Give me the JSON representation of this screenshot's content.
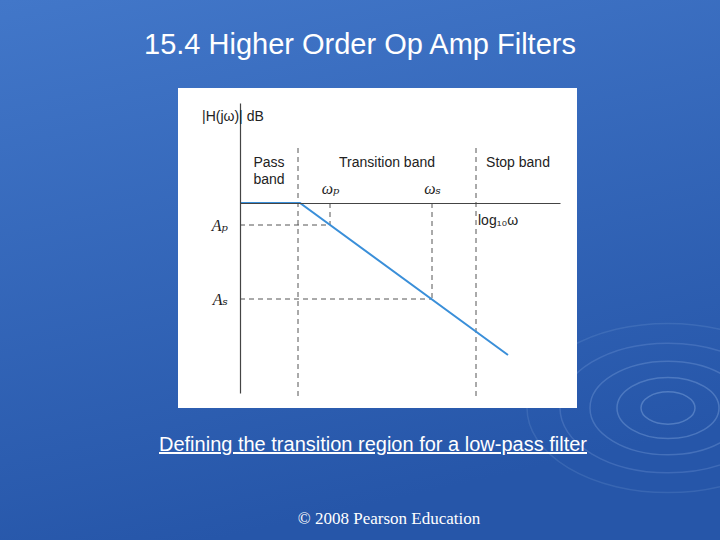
{
  "chart_data": {
    "type": "line",
    "title": "15.4 Higher Order Op Amp Filters",
    "subtitle": "Defining the transition region for a low-pass filter",
    "x_label": "log₁₀ω",
    "y_label": "|H(jω)| dB",
    "x": [
      0,
      3,
      13.4
    ],
    "values": [
      0,
      0,
      -7.6
    ],
    "color": "#3a8fd9",
    "line_style": "solid",
    "xlim": [
      0,
      16
    ],
    "ylim": [
      -9.5,
      5
    ],
    "xticks": [
      {
        "value": 4.5,
        "label": "ωₚ"
      },
      {
        "value": 9.6,
        "label": "ωₛ"
      }
    ],
    "yticks": [
      {
        "value": -1.1,
        "label": "Aₚ"
      },
      {
        "value": -4.8,
        "label": "Aₛ"
      }
    ],
    "grid": false,
    "bands": [
      {
        "label": "Pass band",
        "from": 0,
        "to": 2.9
      },
      {
        "label": "Transition band",
        "from": 2.9,
        "to": 11.8
      },
      {
        "label": "Stop band",
        "from": 11.8,
        "to": 16
      }
    ],
    "annotations": [
      {
        "text": "© 2008 Pearson Education"
      }
    ]
  }
}
